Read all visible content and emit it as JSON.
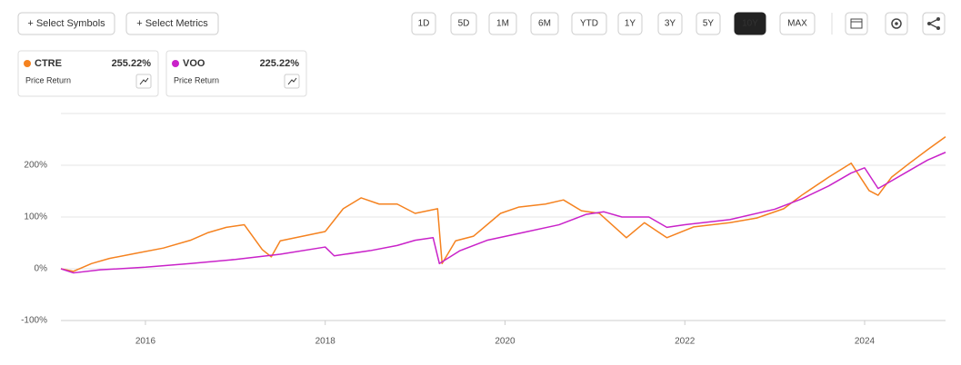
{
  "toolbar": {
    "buttons": [
      "+ Select Symbols",
      "+ Select Metrics"
    ],
    "periods": [
      "1D",
      "5D",
      "1M",
      "6M",
      "YTD",
      "1Y",
      "3Y",
      "5Y",
      "10Y",
      "MAX"
    ],
    "active": "10Y"
  },
  "cards": [
    {
      "symbol": "CTRE",
      "return": "255.22%",
      "metric": "Price Return"
    },
    {
      "symbol": "VOO",
      "return": "225.22%",
      "metric": "Price Return"
    }
  ],
  "chart_data": {
    "type": "line",
    "xlim": [
      2015.06,
      2024.9
    ],
    "xticks": [
      2016,
      2018,
      2020,
      2022,
      2024
    ],
    "ylim": [
      -100,
      300
    ],
    "yticks": [
      {
        "value": -100,
        "label": "-100%"
      },
      {
        "value": 0,
        "label": "0%"
      },
      {
        "value": 100,
        "label": "100%"
      },
      {
        "value": 200,
        "label": "200%"
      }
    ],
    "grid": true,
    "series": [
      {
        "name": "CTRE",
        "color": "#f5821f",
        "x": [
          2015.06,
          2015.2,
          2015.4,
          2015.6,
          2015.9,
          2016.2,
          2016.5,
          2016.7,
          2016.9,
          2017.1,
          2017.3,
          2017.4,
          2017.5,
          2018.0,
          2018.2,
          2018.4,
          2018.6,
          2018.8,
          2019.0,
          2019.25,
          2019.3,
          2019.45,
          2019.65,
          2019.95,
          2020.15,
          2020.45,
          2020.65,
          2020.85,
          2021.05,
          2021.35,
          2021.55,
          2021.8,
          2022.1,
          2022.5,
          2022.8,
          2023.1,
          2023.3,
          2023.6,
          2023.85,
          2024.05,
          2024.15,
          2024.3,
          2024.5,
          2024.7,
          2024.9
        ],
        "values": [
          0,
          -5,
          10,
          20,
          30,
          40,
          55,
          70,
          80,
          85,
          37,
          23,
          54,
          72,
          116,
          137,
          125,
          125,
          107,
          116,
          10,
          54,
          63,
          107,
          119,
          125,
          133,
          112,
          107,
          60,
          89,
          60,
          81,
          89,
          98,
          116,
          142,
          177,
          204,
          151,
          142,
          177,
          204,
          230,
          255
        ]
      },
      {
        "name": "VOO",
        "color": "#c922c9",
        "x": [
          2015.06,
          2015.2,
          2015.5,
          2016.0,
          2016.5,
          2017.0,
          2017.5,
          2018.0,
          2018.1,
          2018.5,
          2018.8,
          2019.0,
          2019.2,
          2019.27,
          2019.5,
          2019.8,
          2020.2,
          2020.6,
          2020.9,
          2021.1,
          2021.3,
          2021.6,
          2021.8,
          2022.0,
          2022.5,
          2023.0,
          2023.3,
          2023.6,
          2023.85,
          2024.0,
          2024.15,
          2024.3,
          2024.5,
          2024.7,
          2024.9
        ],
        "values": [
          0,
          -8,
          -2,
          3,
          10,
          18,
          28,
          42,
          25,
          35,
          45,
          55,
          60,
          10,
          35,
          55,
          70,
          85,
          105,
          110,
          100,
          100,
          80,
          85,
          95,
          115,
          135,
          160,
          185,
          195,
          155,
          170,
          190,
          210,
          225
        ]
      }
    ]
  }
}
